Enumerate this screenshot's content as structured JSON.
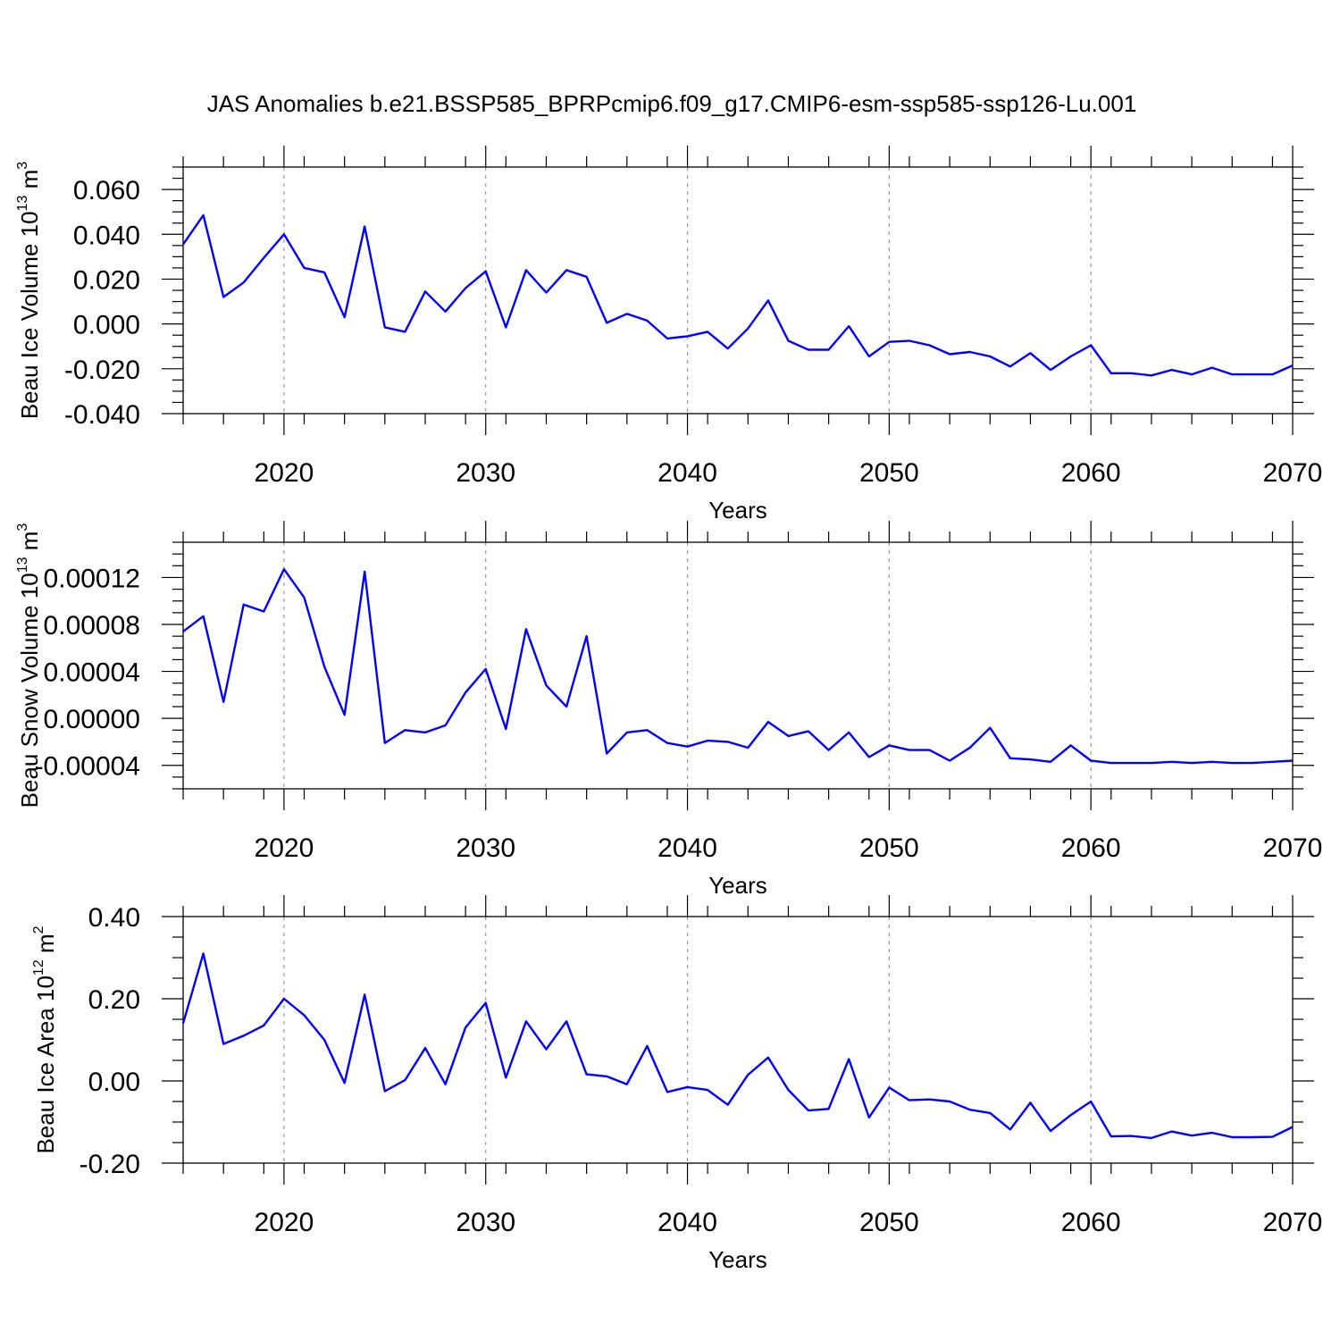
{
  "title": "JAS Anomalies b.e21.BSSP585_BPRPcmip6.f09_g17.CMIP6-esm-ssp585-ssp126-Lu.001",
  "colors": {
    "line": "#0000ff",
    "axis": "#000000",
    "grid": "#999999",
    "background": "#ffffff"
  },
  "chart_data": [
    {
      "type": "line",
      "ylabel": {
        "text": "Beau Ice Volume 10",
        "sup": "13",
        "unit": " m",
        "unit_sup": "3"
      },
      "xlabel": "Years",
      "xlim": [
        2015,
        2070
      ],
      "ylim": [
        -0.04,
        0.07
      ],
      "yticks": [
        -0.04,
        -0.02,
        0.0,
        0.02,
        0.04,
        0.06
      ],
      "ytick_labels": [
        "-0.040",
        "-0.020",
        "0.000",
        "0.020",
        "0.040",
        "0.060"
      ],
      "yminor": 0.005,
      "xticks": [
        2020,
        2030,
        2040,
        2050,
        2060,
        2070
      ],
      "xtick_labels": [
        "2020",
        "2030",
        "2040",
        "2050",
        "2060",
        "2070"
      ],
      "grid": "vertical-dashed",
      "x": [
        2015,
        2016,
        2017,
        2018,
        2019,
        2020,
        2021,
        2022,
        2023,
        2024,
        2025,
        2026,
        2027,
        2028,
        2029,
        2030,
        2031,
        2032,
        2033,
        2034,
        2035,
        2036,
        2037,
        2038,
        2039,
        2040,
        2041,
        2042,
        2043,
        2044,
        2045,
        2046,
        2047,
        2048,
        2049,
        2050,
        2051,
        2052,
        2053,
        2054,
        2055,
        2056,
        2057,
        2058,
        2059,
        2060,
        2061,
        2062,
        2063,
        2064,
        2065,
        2066,
        2067,
        2068,
        2069,
        2070
      ],
      "series": [
        {
          "values": [
            0.0355,
            0.0485,
            0.012,
            0.0185,
            0.0295,
            0.04,
            0.025,
            0.023,
            0.003,
            0.0435,
            -0.0015,
            -0.0035,
            0.0145,
            0.0055,
            0.016,
            0.0235,
            -0.0015,
            0.024,
            0.014,
            0.024,
            0.021,
            0.0005,
            0.0045,
            0.0015,
            -0.0065,
            -0.0055,
            -0.0035,
            -0.011,
            -0.002,
            0.0105,
            -0.0075,
            -0.0115,
            -0.0115,
            -0.001,
            -0.0145,
            -0.008,
            -0.0075,
            -0.0095,
            -0.0135,
            -0.0125,
            -0.0145,
            -0.019,
            -0.013,
            -0.0205,
            -0.0145,
            -0.0095,
            -0.022,
            -0.022,
            -0.023,
            -0.0205,
            -0.0225,
            -0.0195,
            -0.0225,
            -0.0225,
            -0.0225,
            -0.0185
          ]
        }
      ]
    },
    {
      "type": "line",
      "ylabel": {
        "text": "Beau Snow Volume 10",
        "sup": "13",
        "unit": " m",
        "unit_sup": "3"
      },
      "xlabel": "Years",
      "xlim": [
        2015,
        2070
      ],
      "ylim": [
        -6e-05,
        0.00015
      ],
      "yticks": [
        -4e-05,
        0.0,
        4e-05,
        8e-05,
        0.00012
      ],
      "ytick_labels": [
        "-0.00004",
        "0.00000",
        "0.00004",
        "0.00008",
        "0.00012"
      ],
      "yminor": 1e-05,
      "xticks": [
        2020,
        2030,
        2040,
        2050,
        2060,
        2070
      ],
      "xtick_labels": [
        "2020",
        "2030",
        "2040",
        "2050",
        "2060",
        "2070"
      ],
      "grid": "vertical-dashed",
      "x": [
        2015,
        2016,
        2017,
        2018,
        2019,
        2020,
        2021,
        2022,
        2023,
        2024,
        2025,
        2026,
        2027,
        2028,
        2029,
        2030,
        2031,
        2032,
        2033,
        2034,
        2035,
        2036,
        2037,
        2038,
        2039,
        2040,
        2041,
        2042,
        2043,
        2044,
        2045,
        2046,
        2047,
        2048,
        2049,
        2050,
        2051,
        2052,
        2053,
        2054,
        2055,
        2056,
        2057,
        2058,
        2059,
        2060,
        2061,
        2062,
        2063,
        2064,
        2065,
        2066,
        2067,
        2068,
        2069,
        2070
      ],
      "series": [
        {
          "values": [
            7.4e-05,
            8.7e-05,
            1.4e-05,
            9.7e-05,
            9.1e-05,
            0.000127,
            0.000103,
            4.4e-05,
            3e-06,
            0.000125,
            -2.1e-05,
            -1e-05,
            -1.2e-05,
            -6e-06,
            2.2e-05,
            4.2e-05,
            -9e-06,
            7.6e-05,
            2.8e-05,
            1e-05,
            7e-05,
            -3e-05,
            -1.2e-05,
            -1e-05,
            -2.1e-05,
            -2.4e-05,
            -1.9e-05,
            -2e-05,
            -2.5e-05,
            -3e-06,
            -1.5e-05,
            -1.1e-05,
            -2.7e-05,
            -1.2e-05,
            -3.3e-05,
            -2.3e-05,
            -2.7e-05,
            -2.7e-05,
            -3.6e-05,
            -2.5e-05,
            -8e-06,
            -3.4e-05,
            -3.5e-05,
            -3.7e-05,
            -2.3e-05,
            -3.6e-05,
            -3.8e-05,
            -3.8e-05,
            -3.8e-05,
            -3.7e-05,
            -3.8e-05,
            -3.7e-05,
            -3.8e-05,
            -3.8e-05,
            -3.7e-05,
            -3.6e-05
          ]
        }
      ]
    },
    {
      "type": "line",
      "ylabel": {
        "text": "Beau Ice Area 10",
        "sup": "12",
        "unit": " m",
        "unit_sup": "2"
      },
      "xlabel": "Years",
      "xlim": [
        2015,
        2070
      ],
      "ylim": [
        -0.2,
        0.4
      ],
      "yticks": [
        -0.2,
        0.0,
        0.2,
        0.4
      ],
      "ytick_labels": [
        "-0.20",
        "0.00",
        "0.20",
        "0.40"
      ],
      "yminor": 0.05,
      "xticks": [
        2020,
        2030,
        2040,
        2050,
        2060,
        2070
      ],
      "xtick_labels": [
        "2020",
        "2030",
        "2040",
        "2050",
        "2060",
        "2070"
      ],
      "grid": "vertical-dashed",
      "x": [
        2015,
        2016,
        2017,
        2018,
        2019,
        2020,
        2021,
        2022,
        2023,
        2024,
        2025,
        2026,
        2027,
        2028,
        2029,
        2030,
        2031,
        2032,
        2033,
        2034,
        2035,
        2036,
        2037,
        2038,
        2039,
        2040,
        2041,
        2042,
        2043,
        2044,
        2045,
        2046,
        2047,
        2048,
        2049,
        2050,
        2051,
        2052,
        2053,
        2054,
        2055,
        2056,
        2057,
        2058,
        2059,
        2060,
        2061,
        2062,
        2063,
        2064,
        2065,
        2066,
        2067,
        2068,
        2069,
        2070
      ],
      "series": [
        {
          "values": [
            0.14,
            0.31,
            0.09,
            0.11,
            0.135,
            0.2,
            0.16,
            0.1,
            -0.005,
            0.21,
            -0.025,
            0.002,
            0.08,
            -0.008,
            0.13,
            0.19,
            0.008,
            0.145,
            0.077,
            0.145,
            0.016,
            0.011,
            -0.008,
            0.085,
            -0.027,
            -0.015,
            -0.022,
            -0.058,
            0.015,
            0.057,
            -0.022,
            -0.072,
            -0.068,
            0.053,
            -0.089,
            -0.016,
            -0.047,
            -0.045,
            -0.05,
            -0.07,
            -0.078,
            -0.118,
            -0.053,
            -0.122,
            -0.083,
            -0.05,
            -0.135,
            -0.134,
            -0.139,
            -0.123,
            -0.133,
            -0.126,
            -0.137,
            -0.137,
            -0.136,
            -0.112
          ]
        }
      ]
    }
  ]
}
